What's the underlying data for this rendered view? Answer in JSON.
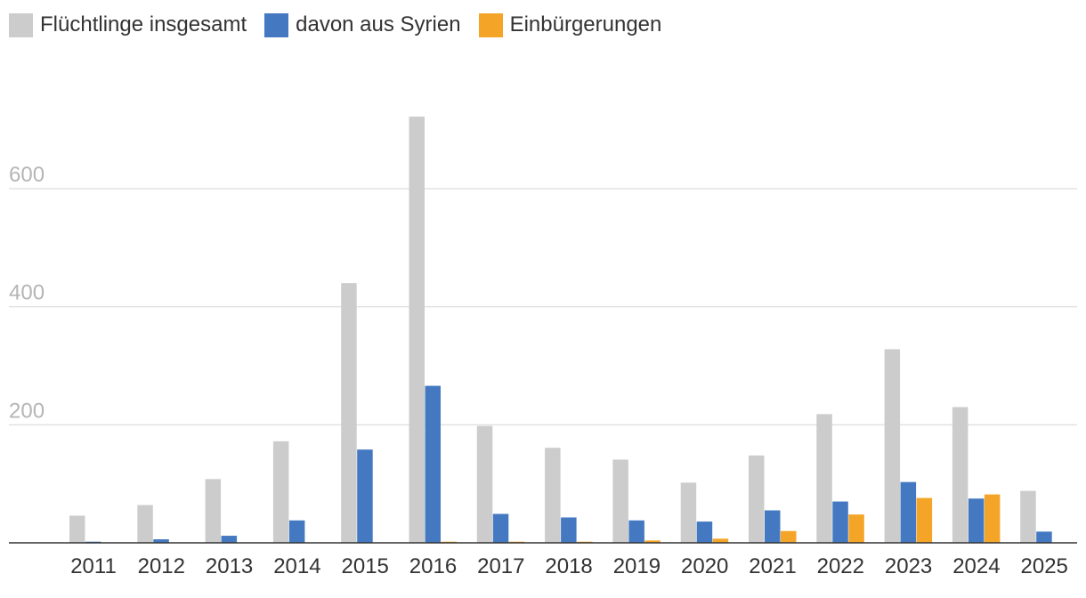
{
  "chart_data": {
    "type": "bar",
    "categories": [
      "2011",
      "2012",
      "2013",
      "2014",
      "2015",
      "2016",
      "2017",
      "2018",
      "2019",
      "2020",
      "2021",
      "2022",
      "2023",
      "2024",
      "2025"
    ],
    "series": [
      {
        "name": "Flüchtlinge insgesamt",
        "color": "#cccccc",
        "values": [
          46,
          64,
          108,
          172,
          440,
          722,
          198,
          161,
          141,
          102,
          148,
          218,
          328,
          230,
          88
        ]
      },
      {
        "name": "davon aus Syrien",
        "color": "#4479c1",
        "values": [
          2,
          6,
          12,
          38,
          158,
          266,
          49,
          43,
          38,
          36,
          55,
          70,
          103,
          75,
          19
        ]
      },
      {
        "name": "Einbürgerungen",
        "color": "#f4a527",
        "values": [
          0,
          0,
          0,
          0,
          0,
          2,
          2,
          2,
          4,
          7,
          20,
          48,
          76,
          82,
          0
        ]
      }
    ],
    "yticks": [
      200,
      400,
      600
    ],
    "ylim": [
      0,
      760
    ],
    "grid": true,
    "legend_position": "top-left"
  }
}
